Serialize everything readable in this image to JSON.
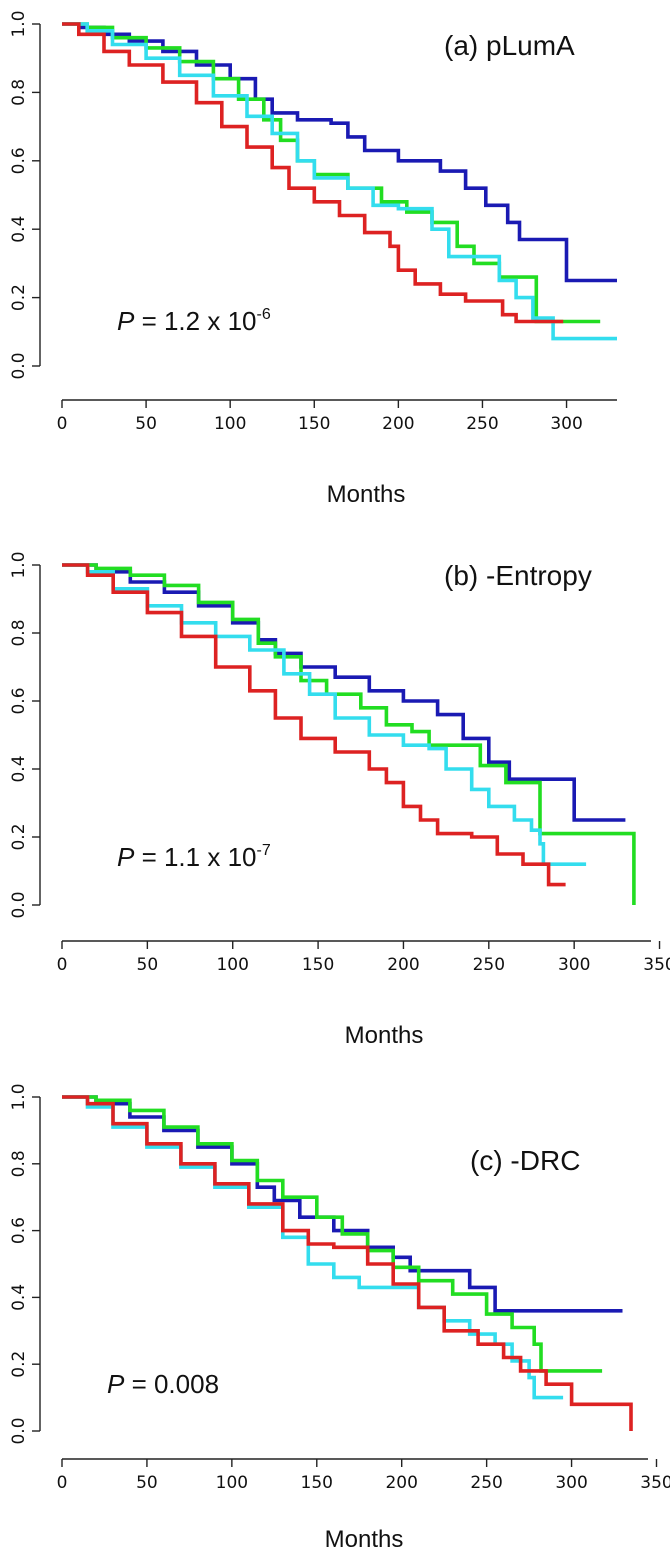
{
  "chart_data": [
    {
      "type": "line",
      "title": "(a) pLumA",
      "xlabel": "Months",
      "ylabel": "",
      "xlim": [
        0,
        330
      ],
      "ylim": [
        0,
        1
      ],
      "xticks": [
        0,
        50,
        100,
        150,
        200,
        250,
        300
      ],
      "yticks": [
        "0.0",
        "0.2",
        "0.4",
        "0.6",
        "0.8",
        "1.0"
      ],
      "annotation": {
        "prefix": "P",
        "text": " = 1.2 x 10",
        "sup": "-6"
      },
      "series": [
        {
          "color": "#1a1ab3",
          "points": [
            [
              0,
              1
            ],
            [
              10,
              0.99
            ],
            [
              25,
              0.97
            ],
            [
              40,
              0.95
            ],
            [
              60,
              0.92
            ],
            [
              80,
              0.88
            ],
            [
              100,
              0.84
            ],
            [
              115,
              0.78
            ],
            [
              125,
              0.74
            ],
            [
              140,
              0.72
            ],
            [
              160,
              0.71
            ],
            [
              170,
              0.67
            ],
            [
              180,
              0.63
            ],
            [
              200,
              0.6
            ],
            [
              225,
              0.57
            ],
            [
              240,
              0.52
            ],
            [
              252,
              0.47
            ],
            [
              265,
              0.42
            ],
            [
              272,
              0.37
            ],
            [
              300,
              0.37
            ],
            [
              300,
              0.25
            ],
            [
              330,
              0.25
            ]
          ]
        },
        {
          "color": "#22dd22",
          "points": [
            [
              0,
              1
            ],
            [
              15,
              0.99
            ],
            [
              30,
              0.96
            ],
            [
              50,
              0.93
            ],
            [
              70,
              0.89
            ],
            [
              90,
              0.84
            ],
            [
              105,
              0.78
            ],
            [
              120,
              0.72
            ],
            [
              130,
              0.66
            ],
            [
              140,
              0.6
            ],
            [
              150,
              0.56
            ],
            [
              170,
              0.52
            ],
            [
              190,
              0.48
            ],
            [
              205,
              0.45
            ],
            [
              220,
              0.42
            ],
            [
              235,
              0.35
            ],
            [
              245,
              0.3
            ],
            [
              260,
              0.26
            ],
            [
              275,
              0.26
            ],
            [
              282,
              0.26
            ],
            [
              282,
              0.13
            ],
            [
              320,
              0.13
            ]
          ]
        },
        {
          "color": "#33ddee",
          "points": [
            [
              0,
              1
            ],
            [
              15,
              0.98
            ],
            [
              30,
              0.94
            ],
            [
              50,
              0.9
            ],
            [
              70,
              0.85
            ],
            [
              90,
              0.79
            ],
            [
              110,
              0.73
            ],
            [
              125,
              0.68
            ],
            [
              140,
              0.6
            ],
            [
              150,
              0.55
            ],
            [
              170,
              0.52
            ],
            [
              185,
              0.47
            ],
            [
              200,
              0.46
            ],
            [
              212,
              0.46
            ],
            [
              220,
              0.4
            ],
            [
              230,
              0.32
            ],
            [
              250,
              0.32
            ],
            [
              260,
              0.25
            ],
            [
              270,
              0.2
            ],
            [
              280,
              0.14
            ],
            [
              292,
              0.14
            ],
            [
              292,
              0.08
            ],
            [
              330,
              0.08
            ]
          ]
        },
        {
          "color": "#dd2222",
          "points": [
            [
              0,
              1
            ],
            [
              10,
              0.97
            ],
            [
              25,
              0.92
            ],
            [
              40,
              0.88
            ],
            [
              60,
              0.83
            ],
            [
              80,
              0.77
            ],
            [
              95,
              0.7
            ],
            [
              110,
              0.64
            ],
            [
              125,
              0.58
            ],
            [
              135,
              0.52
            ],
            [
              150,
              0.48
            ],
            [
              165,
              0.44
            ],
            [
              180,
              0.39
            ],
            [
              195,
              0.35
            ],
            [
              200,
              0.28
            ],
            [
              210,
              0.24
            ],
            [
              225,
              0.21
            ],
            [
              240,
              0.19
            ],
            [
              255,
              0.19
            ],
            [
              262,
              0.15
            ],
            [
              270,
              0.13
            ],
            [
              298,
              0.13
            ]
          ]
        }
      ]
    },
    {
      "type": "line",
      "title": "(b) -Entropy",
      "xlabel": "Months",
      "ylabel": "",
      "xlim": [
        0,
        345
      ],
      "ylim": [
        0,
        1
      ],
      "xticks": [
        0,
        50,
        100,
        150,
        200,
        250,
        300,
        350
      ],
      "yticks": [
        "0.0",
        "0.2",
        "0.4",
        "0.6",
        "0.8",
        "1.0"
      ],
      "annotation": {
        "prefix": "P",
        "text": " = 1.1 x 10",
        "sup": "-7"
      },
      "series": [
        {
          "color": "#1a1ab3",
          "points": [
            [
              0,
              1
            ],
            [
              20,
              0.98
            ],
            [
              40,
              0.95
            ],
            [
              60,
              0.92
            ],
            [
              80,
              0.88
            ],
            [
              100,
              0.83
            ],
            [
              115,
              0.78
            ],
            [
              125,
              0.74
            ],
            [
              140,
              0.7
            ],
            [
              160,
              0.67
            ],
            [
              180,
              0.63
            ],
            [
              200,
              0.6
            ],
            [
              220,
              0.56
            ],
            [
              235,
              0.49
            ],
            [
              250,
              0.42
            ],
            [
              262,
              0.37
            ],
            [
              300,
              0.37
            ],
            [
              300,
              0.25
            ],
            [
              330,
              0.25
            ]
          ]
        },
        {
          "color": "#22dd22",
          "points": [
            [
              0,
              1
            ],
            [
              20,
              0.99
            ],
            [
              40,
              0.97
            ],
            [
              60,
              0.94
            ],
            [
              80,
              0.89
            ],
            [
              100,
              0.84
            ],
            [
              115,
              0.77
            ],
            [
              125,
              0.73
            ],
            [
              140,
              0.66
            ],
            [
              155,
              0.62
            ],
            [
              175,
              0.58
            ],
            [
              190,
              0.53
            ],
            [
              205,
              0.51
            ],
            [
              215,
              0.47
            ],
            [
              235,
              0.47
            ],
            [
              245,
              0.41
            ],
            [
              260,
              0.36
            ],
            [
              272,
              0.36
            ],
            [
              280,
              0.21
            ],
            [
              335,
              0.21
            ],
            [
              335,
              0.0
            ]
          ]
        },
        {
          "color": "#33ddee",
          "points": [
            [
              0,
              1
            ],
            [
              15,
              0.98
            ],
            [
              30,
              0.93
            ],
            [
              50,
              0.88
            ],
            [
              70,
              0.83
            ],
            [
              90,
              0.79
            ],
            [
              110,
              0.75
            ],
            [
              130,
              0.68
            ],
            [
              145,
              0.62
            ],
            [
              160,
              0.55
            ],
            [
              180,
              0.5
            ],
            [
              200,
              0.47
            ],
            [
              215,
              0.46
            ],
            [
              225,
              0.4
            ],
            [
              240,
              0.34
            ],
            [
              250,
              0.29
            ],
            [
              265,
              0.25
            ],
            [
              275,
              0.22
            ],
            [
              280,
              0.18
            ],
            [
              282,
              0.12
            ],
            [
              307,
              0.12
            ]
          ]
        },
        {
          "color": "#dd2222",
          "points": [
            [
              0,
              1
            ],
            [
              15,
              0.97
            ],
            [
              30,
              0.92
            ],
            [
              50,
              0.86
            ],
            [
              70,
              0.79
            ],
            [
              90,
              0.7
            ],
            [
              110,
              0.63
            ],
            [
              125,
              0.55
            ],
            [
              140,
              0.49
            ],
            [
              160,
              0.45
            ],
            [
              180,
              0.4
            ],
            [
              190,
              0.36
            ],
            [
              200,
              0.29
            ],
            [
              210,
              0.25
            ],
            [
              220,
              0.21
            ],
            [
              240,
              0.2
            ],
            [
              255,
              0.15
            ],
            [
              270,
              0.12
            ],
            [
              285,
              0.1
            ],
            [
              285,
              0.06
            ],
            [
              295,
              0.06
            ]
          ]
        }
      ]
    },
    {
      "type": "line",
      "title": "(c) -DRC",
      "xlabel": "Months",
      "ylabel": "",
      "xlim": [
        0,
        345
      ],
      "ylim": [
        0,
        1
      ],
      "xticks": [
        0,
        50,
        100,
        150,
        200,
        250,
        300,
        350
      ],
      "yticks": [
        "0.0",
        "0.2",
        "0.4",
        "0.6",
        "0.8",
        "1.0"
      ],
      "annotation": {
        "prefix": "P",
        "text": " = 0.008",
        "sup": ""
      },
      "series": [
        {
          "color": "#1a1ab3",
          "points": [
            [
              0,
              1
            ],
            [
              20,
              0.98
            ],
            [
              40,
              0.94
            ],
            [
              60,
              0.9
            ],
            [
              80,
              0.85
            ],
            [
              100,
              0.8
            ],
            [
              115,
              0.73
            ],
            [
              125,
              0.69
            ],
            [
              140,
              0.64
            ],
            [
              160,
              0.6
            ],
            [
              180,
              0.55
            ],
            [
              195,
              0.52
            ],
            [
              205,
              0.48
            ],
            [
              225,
              0.48
            ],
            [
              240,
              0.43
            ],
            [
              252,
              0.43
            ],
            [
              255,
              0.36
            ],
            [
              330,
              0.36
            ]
          ]
        },
        {
          "color": "#22dd22",
          "points": [
            [
              0,
              1
            ],
            [
              20,
              0.99
            ],
            [
              40,
              0.96
            ],
            [
              60,
              0.91
            ],
            [
              80,
              0.86
            ],
            [
              100,
              0.81
            ],
            [
              115,
              0.75
            ],
            [
              130,
              0.7
            ],
            [
              150,
              0.64
            ],
            [
              165,
              0.59
            ],
            [
              180,
              0.54
            ],
            [
              195,
              0.49
            ],
            [
              210,
              0.45
            ],
            [
              230,
              0.41
            ],
            [
              250,
              0.35
            ],
            [
              265,
              0.31
            ],
            [
              278,
              0.26
            ],
            [
              282,
              0.18
            ],
            [
              318,
              0.18
            ]
          ]
        },
        {
          "color": "#33ddee",
          "points": [
            [
              0,
              1
            ],
            [
              15,
              0.97
            ],
            [
              30,
              0.91
            ],
            [
              50,
              0.85
            ],
            [
              70,
              0.79
            ],
            [
              90,
              0.73
            ],
            [
              110,
              0.67
            ],
            [
              130,
              0.58
            ],
            [
              145,
              0.5
            ],
            [
              160,
              0.46
            ],
            [
              175,
              0.43
            ],
            [
              195,
              0.43
            ],
            [
              210,
              0.37
            ],
            [
              225,
              0.33
            ],
            [
              240,
              0.29
            ],
            [
              255,
              0.26
            ],
            [
              265,
              0.21
            ],
            [
              275,
              0.16
            ],
            [
              278,
              0.1
            ],
            [
              295,
              0.1
            ]
          ]
        },
        {
          "color": "#dd2222",
          "points": [
            [
              0,
              1
            ],
            [
              15,
              0.98
            ],
            [
              30,
              0.92
            ],
            [
              50,
              0.86
            ],
            [
              70,
              0.8
            ],
            [
              90,
              0.74
            ],
            [
              110,
              0.68
            ],
            [
              130,
              0.6
            ],
            [
              145,
              0.56
            ],
            [
              160,
              0.55
            ],
            [
              180,
              0.5
            ],
            [
              195,
              0.44
            ],
            [
              210,
              0.37
            ],
            [
              225,
              0.3
            ],
            [
              245,
              0.26
            ],
            [
              260,
              0.22
            ],
            [
              270,
              0.18
            ],
            [
              285,
              0.14
            ],
            [
              300,
              0.08
            ],
            [
              335,
              0.08
            ],
            [
              335,
              0.0
            ]
          ]
        }
      ]
    }
  ]
}
